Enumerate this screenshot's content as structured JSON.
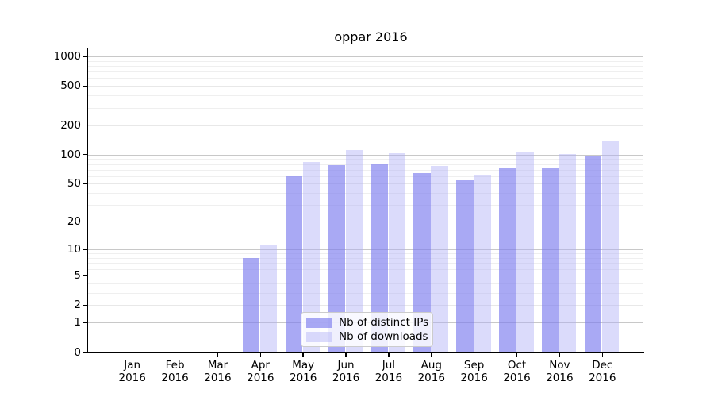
{
  "figure": {
    "title": "oppar 2016",
    "background_color": "#ffffff"
  },
  "legend": {
    "items": [
      {
        "label": "Nb of distinct IPs",
        "color": "#a9a9f4",
        "rgba": "rgba(125,125,238,0.66)"
      },
      {
        "label": "Nb of downloads",
        "color": "#dbdbfb",
        "rgba": "rgba(173,173,247,0.44)"
      }
    ],
    "position": "inside-bottom-center"
  },
  "chart_data": {
    "type": "bar",
    "title": "oppar 2016",
    "categories": [
      "Jan 2016",
      "Feb 2016",
      "Mar 2016",
      "Apr 2016",
      "May 2016",
      "Jun 2016",
      "Jul 2016",
      "Aug 2016",
      "Sep 2016",
      "Oct 2016",
      "Nov 2016",
      "Dec 2016"
    ],
    "months": [
      "Jan",
      "Feb",
      "Mar",
      "Apr",
      "May",
      "Jun",
      "Jul",
      "Aug",
      "Sep",
      "Oct",
      "Nov",
      "Dec"
    ],
    "year": "2016",
    "series": [
      {
        "name": "Nb of distinct IPs",
        "color": "#a9a9f4",
        "values": [
          0,
          0,
          0,
          8,
          60,
          78,
          80,
          65,
          54,
          74,
          74,
          96
        ]
      },
      {
        "name": "Nb of downloads",
        "color": "#dbdbfb",
        "values": [
          0,
          0,
          0,
          11,
          84,
          111,
          104,
          76,
          62,
          107,
          101,
          137
        ]
      }
    ],
    "xlabel": "",
    "ylabel": "",
    "yscale": "log1p",
    "ylim": [
      0,
      1200
    ],
    "yticks": [
      0,
      1,
      2,
      5,
      10,
      20,
      50,
      100,
      200,
      500,
      1000
    ],
    "minor_gridlines": [
      3,
      4,
      6,
      7,
      8,
      9,
      30,
      40,
      60,
      70,
      80,
      90,
      300,
      400,
      600,
      700,
      800,
      900
    ],
    "grid": true,
    "gridline_color_decade": "#c8c8c8",
    "gridline_color_tick": "#e8e8e8",
    "gridline_color_minor": "#efefef"
  }
}
